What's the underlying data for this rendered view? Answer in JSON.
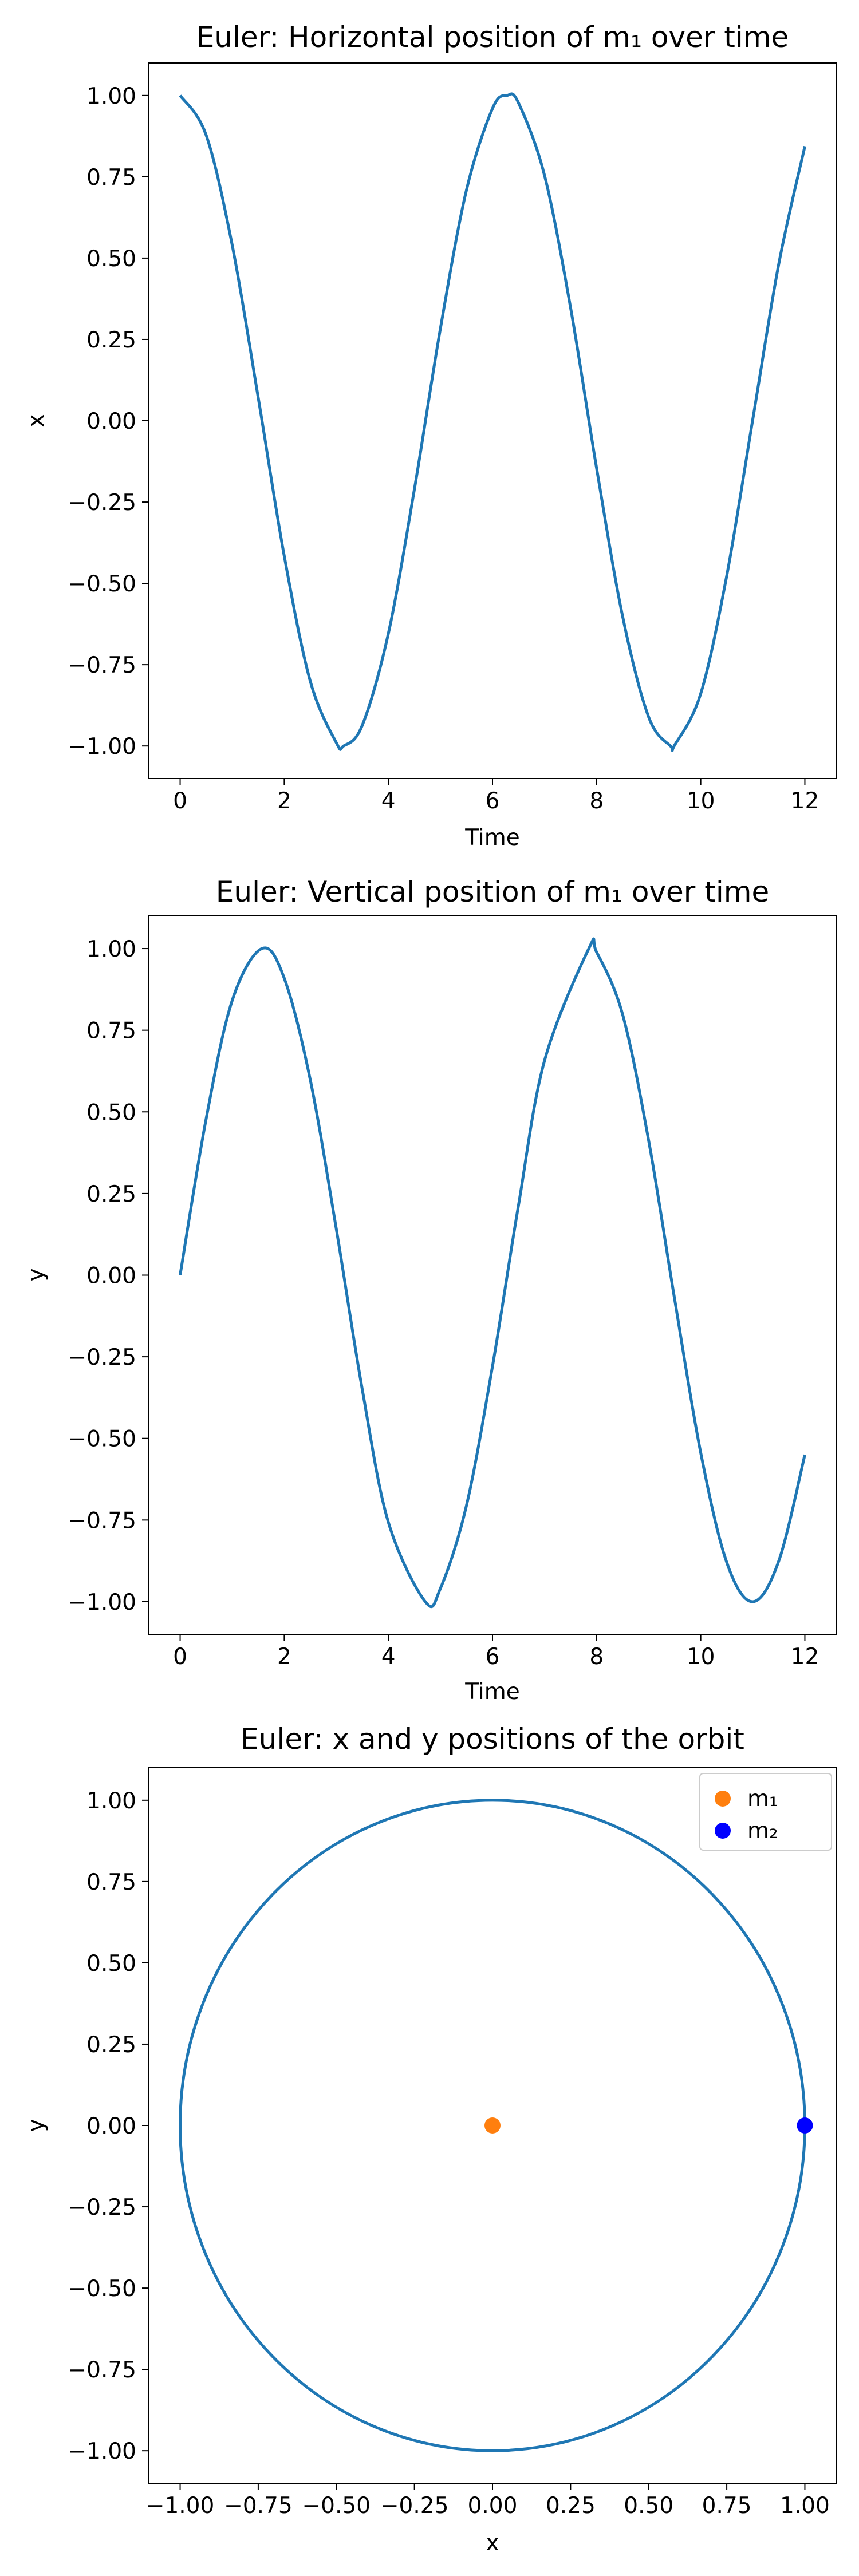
{
  "chart_data": [
    {
      "type": "line",
      "title": "Euler: Horizontal position of m₁ over time",
      "xlabel": "Time",
      "ylabel": "x",
      "xlim": [
        -0.6,
        12.6
      ],
      "ylim": [
        -1.1,
        1.1
      ],
      "xticks": [
        0,
        2,
        4,
        6,
        8,
        10,
        12
      ],
      "yticks": [
        -1.0,
        -0.75,
        -0.5,
        -0.25,
        0.0,
        0.25,
        0.5,
        0.75,
        1.0
      ],
      "xtick_labels": [
        "0",
        "2",
        "4",
        "6",
        "8",
        "10",
        "12"
      ],
      "ytick_labels": [
        "−1.00",
        "−0.75",
        "−0.50",
        "−0.25",
        "0.00",
        "0.25",
        "0.50",
        "0.75",
        "1.00"
      ],
      "color": "#1f77b4",
      "series": [
        {
          "x": [
            0,
            0.5,
            1,
            1.5,
            2,
            2.5,
            3,
            3.14,
            3.5,
            4,
            4.5,
            5,
            5.5,
            6,
            6.28,
            6.5,
            7,
            7.5,
            8,
            8.5,
            9,
            9.42,
            9.5,
            10,
            10.5,
            11,
            11.5,
            12
          ],
          "values": [
            1.0,
            0.878,
            0.54,
            0.071,
            -0.416,
            -0.801,
            -0.99,
            -1.0,
            -0.936,
            -0.654,
            -0.211,
            0.284,
            0.709,
            0.96,
            1.0,
            0.977,
            0.754,
            0.347,
            -0.146,
            -0.602,
            -0.911,
            -1.0,
            -0.997,
            -0.839,
            -0.476,
            0.004,
            0.483,
            0.844
          ]
        }
      ]
    },
    {
      "type": "line",
      "title": "Euler: Vertical position of m₁ over time",
      "xlabel": "Time",
      "ylabel": "y",
      "xlim": [
        -0.6,
        12.6
      ],
      "ylim": [
        -1.1,
        1.1
      ],
      "xticks": [
        0,
        2,
        4,
        6,
        8,
        10,
        12
      ],
      "yticks": [
        -1.0,
        -0.75,
        -0.5,
        -0.25,
        0.0,
        0.25,
        0.5,
        0.75,
        1.0
      ],
      "xtick_labels": [
        "0",
        "2",
        "4",
        "6",
        "8",
        "10",
        "12"
      ],
      "ytick_labels": [
        "−1.00",
        "−0.75",
        "−0.50",
        "−0.25",
        "0.00",
        "0.25",
        "0.50",
        "0.75",
        "1.00"
      ],
      "color": "#1f77b4",
      "series": [
        {
          "x": [
            0,
            0.5,
            1,
            1.57,
            2,
            2.5,
            3,
            3.5,
            4,
            4.71,
            5,
            5.5,
            6,
            6.5,
            7,
            7.85,
            8,
            8.5,
            9,
            9.5,
            10,
            10.5,
            11,
            11.5,
            12
          ],
          "values": [
            0.0,
            0.479,
            0.841,
            1.0,
            0.909,
            0.598,
            0.141,
            -0.351,
            -0.757,
            -1.0,
            -0.959,
            -0.706,
            -0.279,
            0.215,
            0.657,
            1.0,
            0.989,
            0.798,
            0.412,
            -0.075,
            -0.544,
            -0.88,
            -1.0,
            -0.875,
            -0.55
          ]
        }
      ]
    },
    {
      "type": "scatter",
      "title": "Euler: x and y positions of the orbit",
      "xlabel": "x",
      "ylabel": "y",
      "xlim": [
        -1.1,
        1.1
      ],
      "ylim": [
        -1.1,
        1.1
      ],
      "xticks": [
        -1.0,
        -0.75,
        -0.5,
        -0.25,
        0.0,
        0.25,
        0.5,
        0.75,
        1.0
      ],
      "yticks": [
        -1.0,
        -0.75,
        -0.5,
        -0.25,
        0.0,
        0.25,
        0.5,
        0.75,
        1.0
      ],
      "xtick_labels": [
        "−1.00",
        "−0.75",
        "−0.50",
        "−0.25",
        "0.00",
        "0.25",
        "0.50",
        "0.75",
        "1.00"
      ],
      "ytick_labels": [
        "−1.00",
        "−0.75",
        "−0.50",
        "−0.25",
        "0.00",
        "0.25",
        "0.50",
        "0.75",
        "1.00"
      ],
      "orbit": {
        "center": [
          0,
          0
        ],
        "radius": 1.0,
        "color": "#1f77b4"
      },
      "points": [
        {
          "name": "m₁",
          "x": 0.0,
          "y": 0.0,
          "color": "#ff7f0e"
        },
        {
          "name": "m₂",
          "x": 1.0,
          "y": 0.0,
          "color": "#0000ff"
        }
      ],
      "legend": "top-right",
      "legend_labels": [
        "m₁",
        "m₂"
      ]
    }
  ]
}
